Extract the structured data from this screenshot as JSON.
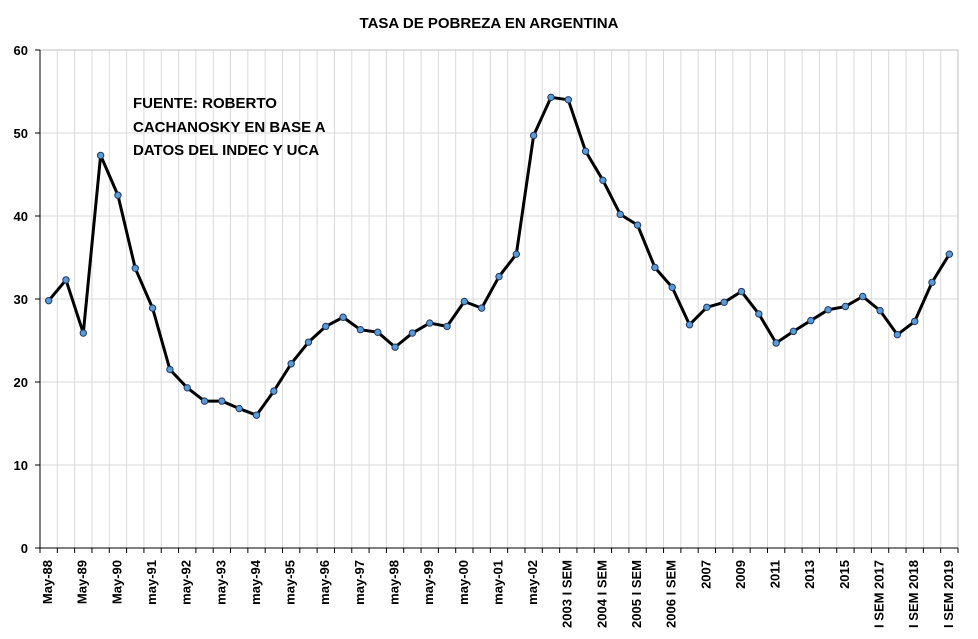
{
  "chart_data": {
    "type": "line",
    "title": "TASA DE POBREZA EN ARGENTINA",
    "xlabel": "",
    "ylabel": "",
    "ylim": [
      0,
      60
    ],
    "yticks": [
      "0",
      "10",
      "20",
      "30",
      "40",
      "50",
      "60"
    ],
    "grid": true,
    "annotation": [
      "FUENTE: ROBERTO",
      "CACHANOSKY EN BASE A",
      "DATOS DEL INDEC Y UCA"
    ],
    "x_tick_labels": [
      {
        "index": 0,
        "label": "May-88"
      },
      {
        "index": 2,
        "label": "May-89"
      },
      {
        "index": 4,
        "label": "May-90"
      },
      {
        "index": 6,
        "label": "may-91"
      },
      {
        "index": 8,
        "label": "may-92"
      },
      {
        "index": 10,
        "label": "may-93"
      },
      {
        "index": 12,
        "label": "may-94"
      },
      {
        "index": 14,
        "label": "may-95"
      },
      {
        "index": 16,
        "label": "may-96"
      },
      {
        "index": 18,
        "label": "may-97"
      },
      {
        "index": 20,
        "label": "may-98"
      },
      {
        "index": 22,
        "label": "may-99"
      },
      {
        "index": 24,
        "label": "may-00"
      },
      {
        "index": 26,
        "label": "may-01"
      },
      {
        "index": 28,
        "label": "may-02"
      },
      {
        "index": 30,
        "label": "2003 I SEM"
      },
      {
        "index": 32,
        "label": "2004 I SEM"
      },
      {
        "index": 34,
        "label": "2005 I SEM"
      },
      {
        "index": 36,
        "label": "2006 I SEM"
      },
      {
        "index": 38,
        "label": "2007"
      },
      {
        "index": 40,
        "label": "2009"
      },
      {
        "index": 42,
        "label": "2011"
      },
      {
        "index": 44,
        "label": "2013"
      },
      {
        "index": 46,
        "label": "2015"
      },
      {
        "index": 48,
        "label": "I SEM 2017"
      },
      {
        "index": 50,
        "label": "I SEM 2018"
      },
      {
        "index": 52,
        "label": "I SEM 2019"
      }
    ],
    "series": [
      {
        "values": [
          29.8,
          32.3,
          25.9,
          47.3,
          42.5,
          33.7,
          28.9,
          21.5,
          19.3,
          17.7,
          17.7,
          16.8,
          16.0,
          18.9,
          22.2,
          24.8,
          26.7,
          27.8,
          26.3,
          26.0,
          24.2,
          25.9,
          27.1,
          26.7,
          29.7,
          28.9,
          32.7,
          35.4,
          49.7,
          54.3,
          54.0,
          47.8,
          44.3,
          40.2,
          38.9,
          33.8,
          31.4,
          26.9,
          29.0,
          29.6,
          30.9,
          28.2,
          24.7,
          26.1,
          27.4,
          28.7,
          29.1,
          30.3,
          28.6,
          25.7,
          27.3,
          32.0,
          35.4
        ],
        "color": "#000000",
        "marker_color": "#5b9bd5"
      }
    ]
  }
}
